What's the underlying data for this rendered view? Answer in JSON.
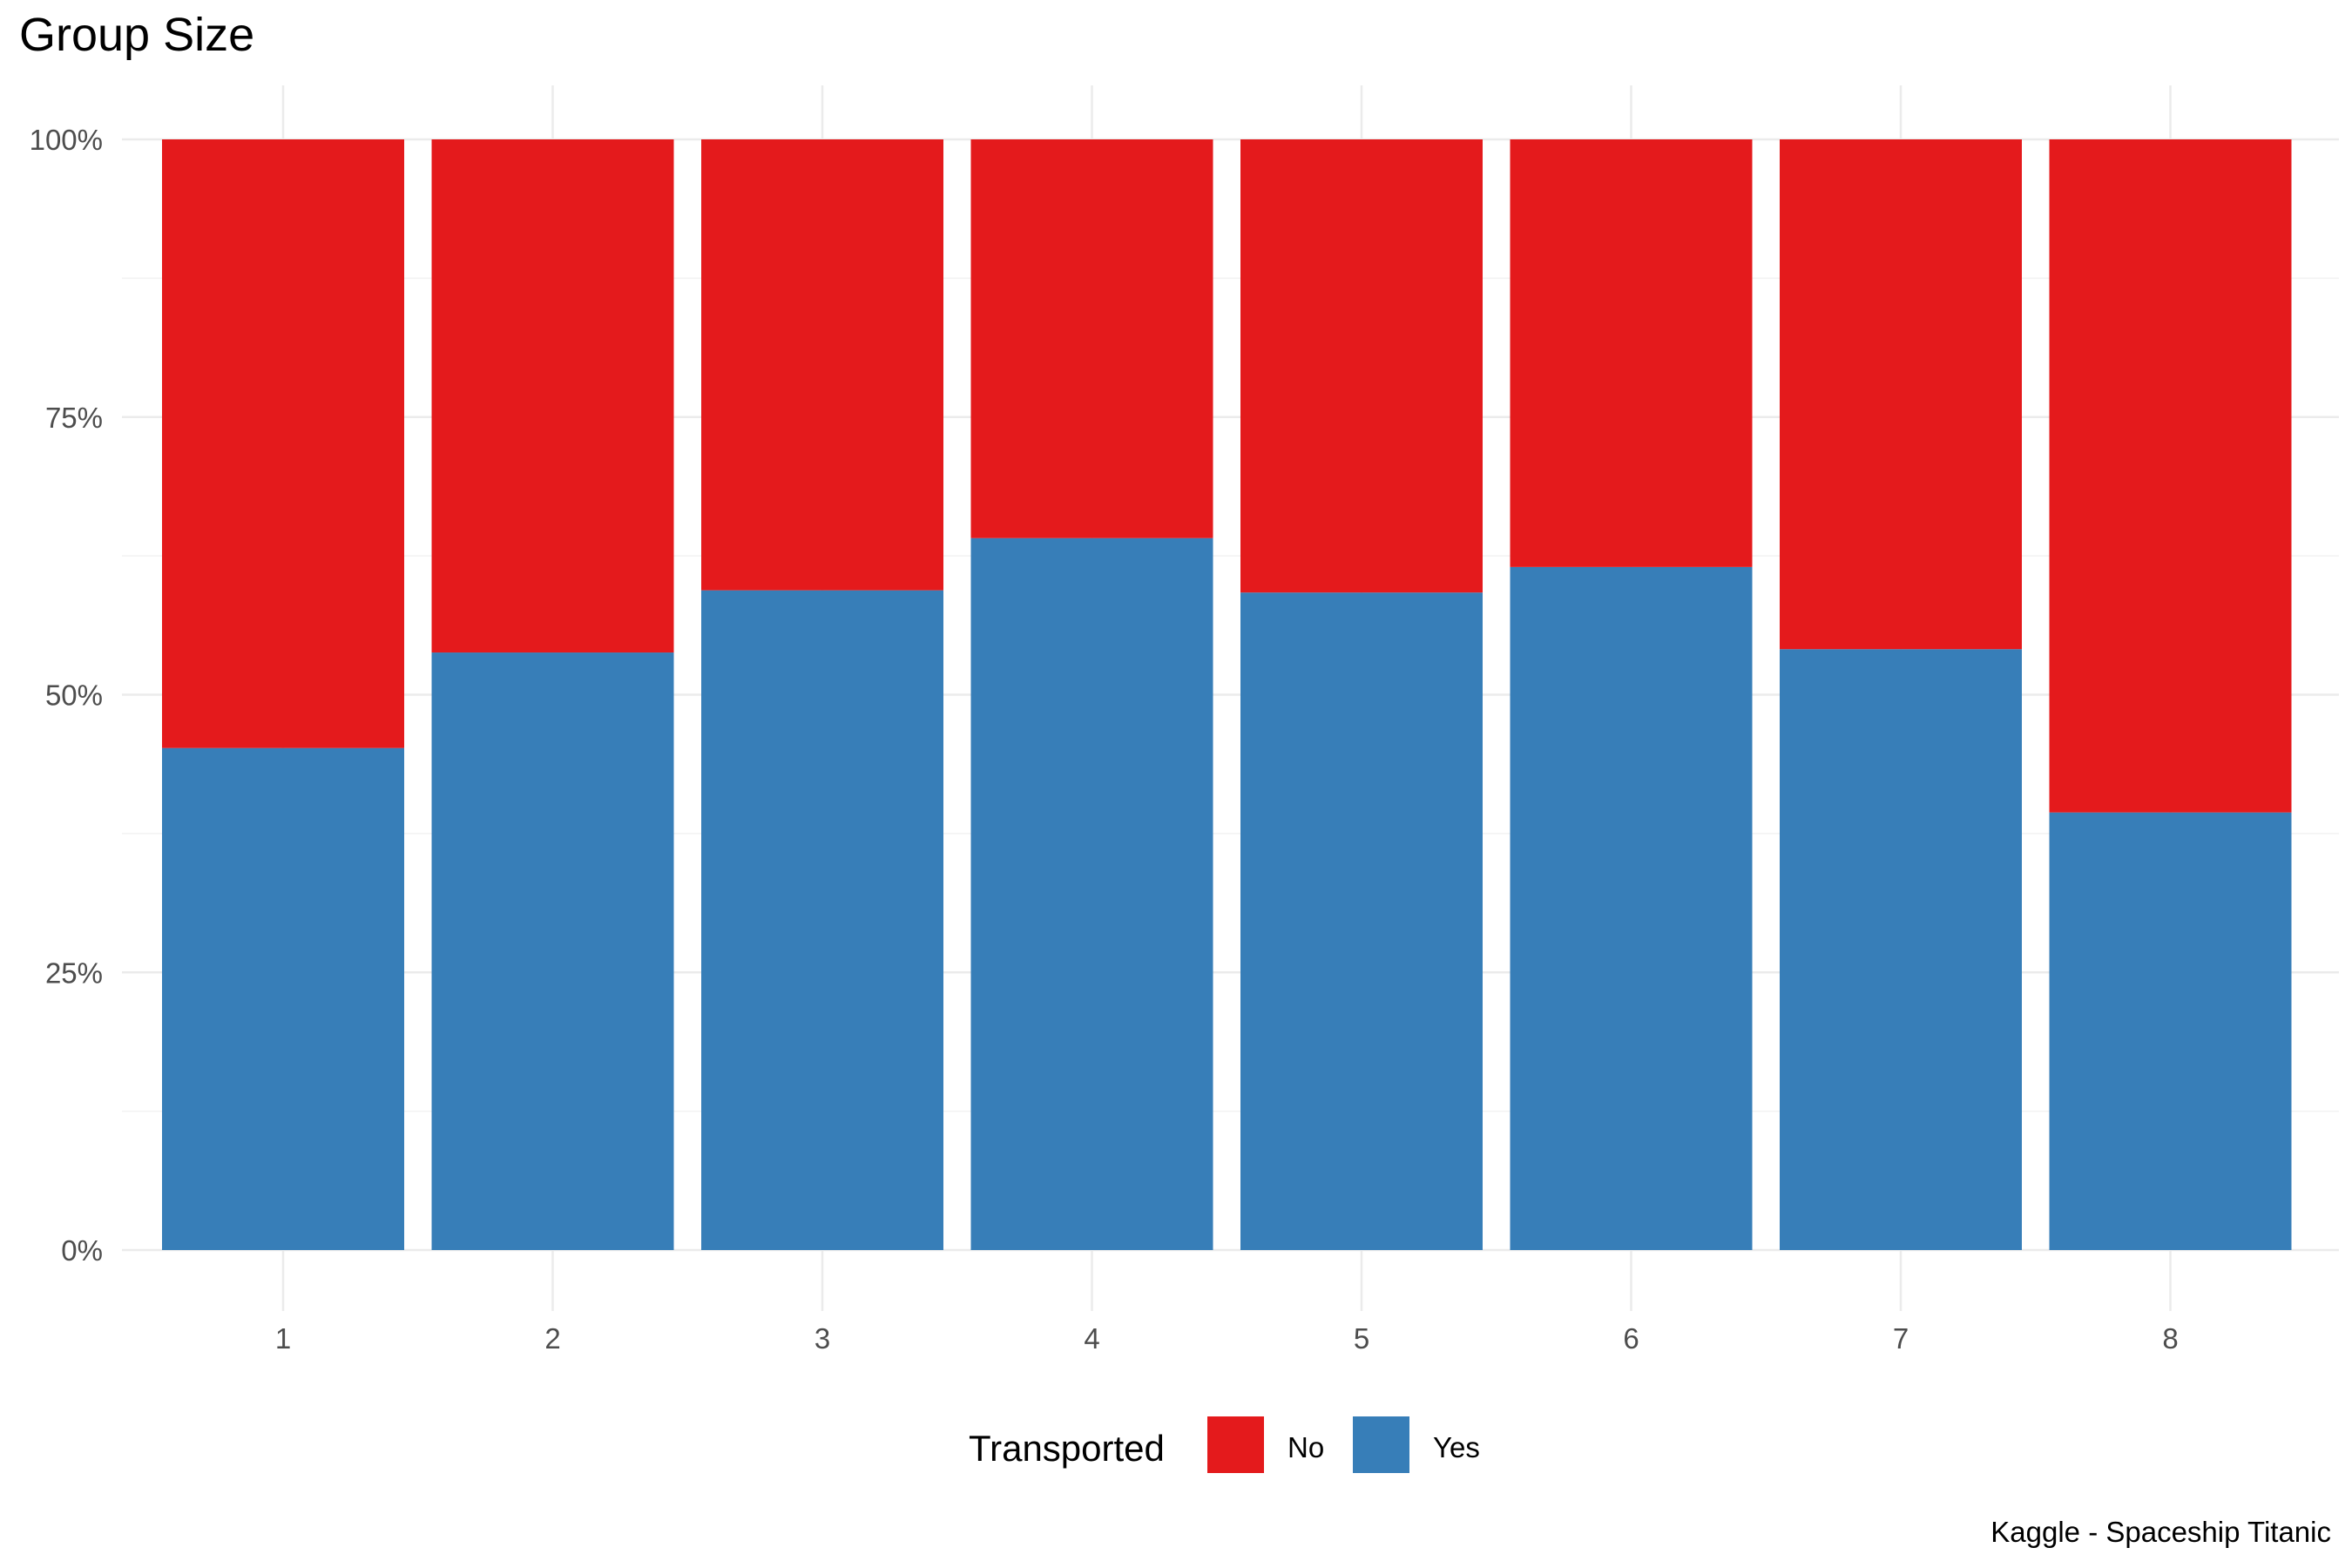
{
  "chart_data": {
    "type": "bar",
    "stacked": "percent",
    "title": "Group Size",
    "caption": "Kaggle - Spaceship Titanic",
    "xlabel": "",
    "ylabel": "",
    "categories": [
      "1",
      "2",
      "3",
      "4",
      "5",
      "6",
      "7",
      "8"
    ],
    "series": [
      {
        "name": "Yes",
        "color": "#377EB8",
        "values": [
          45.2,
          53.8,
          59.4,
          64.1,
          59.2,
          61.5,
          54.1,
          39.4
        ]
      },
      {
        "name": "No",
        "color": "#E41A1C",
        "values": [
          54.8,
          46.2,
          40.6,
          35.9,
          40.8,
          38.5,
          45.9,
          60.6
        ]
      }
    ],
    "ylim": [
      0,
      100
    ],
    "yticks": [
      0,
      25,
      50,
      75,
      100
    ],
    "ytick_labels": [
      "0%",
      "25%",
      "50%",
      "75%",
      "100%"
    ],
    "grid": true,
    "legend": {
      "title": "Transported",
      "position": "bottom",
      "entries": [
        {
          "label": "No",
          "color": "#E41A1C"
        },
        {
          "label": "Yes",
          "color": "#377EB8"
        }
      ]
    }
  }
}
